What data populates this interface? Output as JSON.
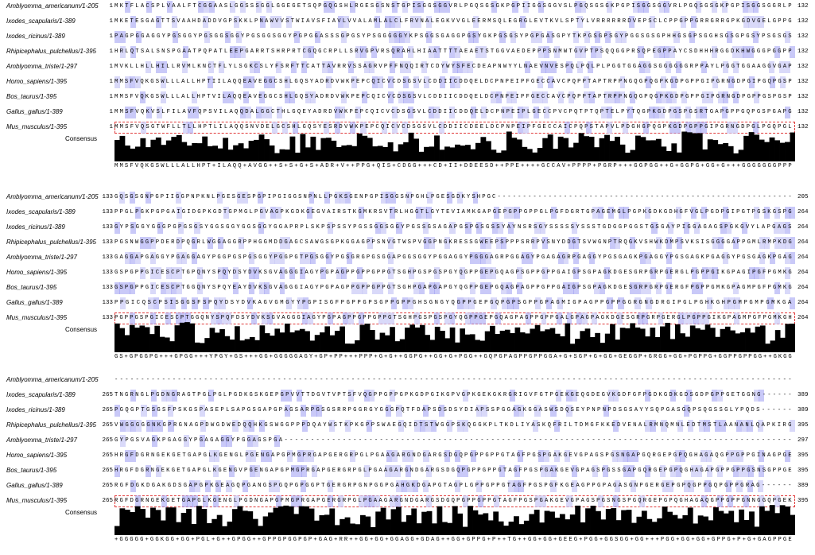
{
  "consensus_label": "Consensus",
  "highlight_colors": {
    "strong": "#9d9df2",
    "light": "#c9c9f7",
    "box": "#e03a3a"
  },
  "blocks": [
    {
      "rows": [
        {
          "name": "Amblyomma_americanum/1-205",
          "start": "1",
          "end": "132",
          "seq": "MKTFLACSPLVAALFTCGGAASLGGSSSGGLGGEGETSQPGQGSHLRGESGSNSTGPISGGSGGVRLPGQSGSGKPGPIIGGSGGVSLPGQSGSGKPGPISGGSGGVRLPGQSGSGKPGPISGGSGGRLP"
        },
        {
          "name": "Ixodes_scapularis/1-389",
          "start": "1",
          "end": "132",
          "seq": "MKETESGAGTTSVAAHDADDVGPSKKLPNAWVVSTWIAVSFIAVLVVALAMLALCLFRVNALEGKVVGLEERMSQLEGRGLEVTKVLSPTYLVRRRRRRDVEPSCLCPPGPPGRRGRRGPKGDVGELGPPG"
        },
        {
          "name": "Ixodes_ricinus/1-389",
          "start": "1",
          "end": "132",
          "seq": "PAGPGGAGGYPGSGGYPGSGGSGGYPGSGGSGGYPGPGGASSSGPGSYPSGGGGGYKPSGGSGAGGPGSYGKPGSGSYPGPGASGPYTKPGSGPSGYPGGSGSGPHHGSGPSGGHSGSGPGSYPSGSGS"
        },
        {
          "name": "Rhipicephalus_pulchellus/1-395",
          "start": "1",
          "end": "132",
          "seq": "HRLQTSALSNSPGAATPQPATLEEPGARRTSHRPRTCGQGCRPLLSRVGPVRSQRAHLHIAATTTTAEAETSTGGVAEDEPPPSNMWTGVPTPSQQGGPRSQPEGPPAYCSDHHHRGGDKHWGGGPGGPP"
        },
        {
          "name": "Amblyomma_triste/1-297",
          "start": "1",
          "end": "132",
          "seq": "MVKLLHLLHILLRVMLKNCTFLYLSGKCSLYFSRFTTCATTAVRRVSSAGRVPFFNQQIRTCDYWYSFECDEAPNWYYLNAEVNVESPQLPQLPLPGGTGGAGGSGGGGGGRPPAYLPGGTGGAAGGVGAP"
        },
        {
          "name": "Homo_sapiens/1-395",
          "start": "1",
          "end": "132",
          "seq": "MMSFVQKGSWLLLALLHPTIILAQQEAVEGGCSHLGQSYADRDVWKPEPCQICVCDSGSVLCDDIICDDQELDCPNPEIPFGECCAVCPQPPTAPTRPPNGQGPQGPKGDPGPPGIPGRNGDPGIPGQPGSP"
        },
        {
          "name": "Bos_taurus/1-395",
          "start": "1",
          "end": "132",
          "seq": "MMSFVQKGSWLLLALLHPTVILAQQEAVEGGCSHLGQSYADRDVWKPEPCQICVCDSGSVLCDDIICDDQELDCPNPEIPFGECCAVCPQPPTAPTRPPNGQGPQGPKGDPGPPGIPGRNGDPGPPGSPGSP"
        },
        {
          "name": "Gallus_gallus/1-389",
          "start": "1",
          "end": "132",
          "seq": "MMSFVQKVSLFILAVFQPSVILAQQDALGGCTHLGQEYADRDVWKPEPCQICVCDSGSVLCDDIICDDQELDCPNPEIPLGECCPVCPQTPTQPTELPYTQGPKGDPGSPGSRTGAPGPPGQPGSPGAPG"
        },
        {
          "name": "Mus_musculus/1-395",
          "start": "1",
          "end": "132",
          "seq": "MMSFVQSGTWFLLTLLHPTLILAQQSNVDELGCSHLGQSYESRDVWKPEPCQICVCDSGSVLCDDIICDEELDCPNPEIPFGECCAICPQPSTAPVLPDGHGPQGPKGDPGPPGIPGRNGDPGLPGQPGL",
          "boxed": true
        }
      ],
      "consensus": "MMSFVQKGSWLLLALLHPT+ILAQQ+AVGG++S+S+G+S+ADR+V++PPG+QIS+CDGG+++CD+II+DDEESD++PPE++++GCCAV+PPPP+PGRP+++GGPGG++G+GGPG+GG+G+++GGGGGGGPPP"
    },
    {
      "rows": [
        {
          "name": "Amblyomma_americanum/1-205",
          "start": "133",
          "end": "205",
          "seq": "GQSGSGNPGPIIGGPNPKNLPGESGESPGPIPGIGGSNPNLLPGKSGENPGPISGGSNPGHLPGESGDKYSHPGC----------------------------------------------------------"
        },
        {
          "name": "Ixodes_scapularis/1-389",
          "start": "133",
          "end": "264",
          "seq": "PPGLPGKPGPGAIGIDGPKGDTGPMGLPGVAGPKGDKGEGVAIRSTKGMKRSVTRLHGGTLGYTEVIAMKGAPGEPGPPGPPGLPGFDGRTGPAGEMGLPGPKGDKGDHGFVGLPGDPGIPGTPGSKGSPG"
        },
        {
          "name": "Ixodes_ricinus/1-389",
          "start": "133",
          "end": "264",
          "seq": "GYPSGGYGGGPGPGSGSYGGSGGYGGSGGYGGAPRPLSKPSPSSYPGSSGGSGGYPGSSGSAGAPGSPGSGSSYAYNSRSGYSSSSSYSSSTGDGGPGGSTGSGAYPIGGAGAGSPGKGVYLAPGAGS"
        },
        {
          "name": "Rhipicephalus_pulchellus/1-395",
          "start": "133",
          "end": "264",
          "seq": "PGSNWGGPPDERDPQGRLWGGAGGRPPHGGMDDGAGCSAWGSGPKGGAGPPSNVGTWSPVGGPNGKRESSGWEEPSPPPSRRPVSNYDDGTSVWGNPTRQGKVSHWKDMPSVKSISGGGGAPPGMLRMPKDG"
        },
        {
          "name": "Amblyomma_triste/1-297",
          "start": "133",
          "end": "264",
          "seq": "GAGGAPGAGGYPGAGGAGYPGGPGSPGSGGYPGGPGTPGSGGYPGSGRGPGSGGAPGGSGGYPGGAGGYPGGGAGRPGGAGYPGAGAGRPGAGGYPGSGAGKPGAGGYPGSGAGKPGAGGYPGSGAGKPGAG"
        },
        {
          "name": "Homo_sapiens/1-395",
          "start": "133",
          "end": "264",
          "seq": "GSPGPPGICESCPTGPQNYSPQYDSYDVKSGVAGGGIAGYPGPAGPPGPPGPPGTSGHPGSPGSPGYQGPPGEPGQAGPSGPPGPPGAIGPSGPAGKDGESGRPGRPGERGLPGPPGIKGPAGIPGFPGMKG"
        },
        {
          "name": "Bos_taurus/1-395",
          "start": "133",
          "end": "264",
          "seq": "GSPGPPGICESCPTGGQNYSPQYEAYDVKSGVAGGGIAGYPGPAGPPGPPGPPGTSGHPGAPGAPGYQGPPGEPGQAGPAGPPGPPGAIGPSGPAGKDGESGRPGRPGERGFPGPPGMKGPAGMPGFPGMKG"
        },
        {
          "name": "Gallus_gallus/1-389",
          "start": "133",
          "end": "264",
          "seq": "PPGICQSCPSISGGSFSPQYDSYDVKAGVGMGYYPGPISGFPGPPGPSGPPGPPGHSGNGYQGPPGEPGQPGPSGPPGPAGMIGPAGPPGPPGGRGNGDRGIPGLPGHKGHPGMPGMPGMKGA"
        },
        {
          "name": "Mus_musculus/1-395",
          "start": "133",
          "end": "264",
          "seq": "PGPPGSPGICESCPTGGQNYSPQFDSYDVKSGVAGGGIAGYPGPAGPPGPPGPPGTSGHPGSPGSPGYQGPPGEPGQAGPAGPPGPPGALGPAGPAGKDGESGRPGRPGERGLPGPPGIKGPAGMPGFPGMKGH",
          "boxed": true
        }
      ],
      "consensus": "GS+GPGGPG+++GPGG+++YPGY+GS+++GG+GGGGGAGY+GP+PP+++PPP+G+G++GGPG++GG+G+PGG++GQPGPAGPPGPPGGA+G+SGP+G+GG+GEGGP+GRGG+GG+PGPPG+GGPPGPPGG++GKGG"
    },
    {
      "rows": [
        {
          "name": "Amblyomma_americanum/1-205",
          "start": "",
          "end": "",
          "seq": "---------------------------------------------------------------------------------------------------------------------------------"
        },
        {
          "name": "Ixodes_scapularis/1-389",
          "start": "265",
          "end": "389",
          "seq": "TNGRNGLPGDNGRAGTPGLPGLPGDKGSKGEPGPVVTTDGVTVPTSFVQGPPGPPGPKGDPGIKGPVGPKGEKGKRGRIGVFGTPGEKGEQGDEGVKGDFGFPGDKGDKGDSGDPGPPGETGGNG------"
        },
        {
          "name": "Ixodes_ricinus/1-389",
          "start": "265",
          "end": "389",
          "seq": "PGQGPTGSGSFPSKGSPASEPLSAPGSGAPGPAGSARPGSGSRRPGGRGYGGGPQTFDAPSDSDSYDIAPSSPGGAGKGGASWSDQSEYPNPNPDSGSAYYSQPGASGQPSQGSSGLYPQDS------"
        },
        {
          "name": "Rhipicephalus_pulchellus/1-395",
          "start": "265",
          "end": "395",
          "seq": "VWGGGGGNKGPRGNAGPDWGDWEDQQHKGSWGGPPPDQAYWSTKPKGPPSWAEGQIDTSTWGGPSKQGGKPLTKDLIYASKQFRILTDMGFKKEDVENALRMNQMNLEDTMSTLAANANLQAPKIRG"
        },
        {
          "name": "Amblyomma_triste/1-297",
          "start": "265",
          "end": "297",
          "seq": "GYPGSVAGKPGAGGYPGAGAGGYPGGAGSPGA------------------------------------------------------------------------------------------------"
        },
        {
          "name": "Homo_sapiens/1-395",
          "start": "265",
          "end": "395",
          "seq": "HRGFDGRNGEKGETGAPGLKGENGLPGENGAPGPMGPRGAPGERGRPGLPGAAGARGNDGARGSDGQPGPPGPPGTAGFPGSPGAKGEVGPAGSPGSNGAPGQRGEPGPQGHAGAQGPPGPPGINAGPGE"
        },
        {
          "name": "Bos_taurus/1-395",
          "start": "265",
          "end": "395",
          "seq": "HRGFDGRNGEKGETGAPGLKGENGVPGENGAPGPMGPRGAPGERGRPGLPGAAGARGNDGARGSDGQPGPPGPPGTAGFPGSPGAKGEVGPAGSPGSSGAPGQRGEPGPQGHAGAPGPPGPPGSNSGPPGE"
        },
        {
          "name": "Gallus_gallus/1-389",
          "start": "265",
          "end": "389",
          "seq": "RGFDGKDGAKGDSGAPGPKGEAGQPGANGSPGQPGPGGPTGERGRPGNPGGPGAHGKDGAPGTAGPLGPPGPPGTAGFPGSPGFKGEAGPPGPAGASGNPGERGEPGPQGPPGQPGPPGRAG------"
        },
        {
          "name": "Mus_musculus/1-395",
          "start": "265",
          "end": "395",
          "seq": "RGFDGRNGEKGETGAPGLKGENGLPGDNGAPGPMGPRGAPGERGRPGLPGAAGARGNDGARGSDGQPGPPGPPGTAGFPGSPGAKGEVGPAGSPGSNGSPGQRGEPGPQGHAGAQGPPGPPGNNGGQPGEK",
          "boxed": true
        }
      ],
      "consensus": "+GGGGG+GGKGG+GG+PGL+G++GPGG++GPPGPGGPGP+GAG+RR++GG+GG+GGAGG+GDAG++GG+GPPG+P++TG++GG+GG+GEEG+PGG+GGSGG+GG+++PGG+GG+GG+GPPG+P+G+GAGPPGE"
    }
  ]
}
